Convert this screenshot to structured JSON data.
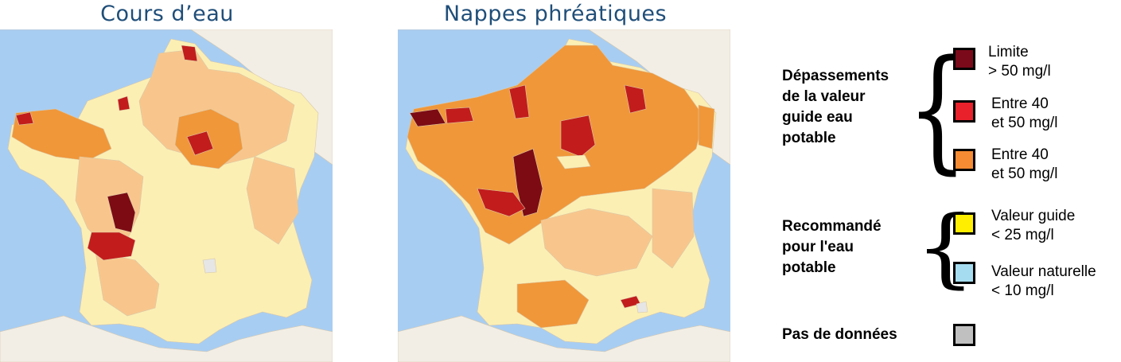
{
  "maps": [
    {
      "title": "Cours d’eau"
    },
    {
      "title": "Nappes phréatiques"
    }
  ],
  "colors": {
    "sea": "#a8cdf2",
    "land_outside": "#f2eee6",
    "class_lt25": "#fcefb4",
    "class_25_40": "#f8c68c",
    "class_40_50": "#f0973a",
    "class_gt50": "#c21c1c",
    "class_limit": "#7c0b14",
    "no_data": "#e6e6e6",
    "swatch_limit": "#7a0a1a",
    "swatch_40_50": "#e8212b",
    "swatch_orange": "#f58b33",
    "swatch_yellow": "#ffee00",
    "swatch_blue": "#a6dcef",
    "swatch_grey": "#c0c0c0"
  },
  "legend": {
    "group1_heading": [
      "Dépassements",
      "de la valeur",
      "guide eau",
      "potable"
    ],
    "group2_heading": [
      "Recommandé",
      "pour l'eau",
      "potable"
    ],
    "no_data_heading": "Pas de données",
    "items": [
      {
        "line1": "Limite",
        "line2": "> 50 mg/l"
      },
      {
        "line1": "Entre 40",
        "line2": "et 50 mg/l"
      },
      {
        "line1": "Entre 40",
        "line2": "et 50 mg/l"
      },
      {
        "line1": "Valeur guide",
        "line2": "< 25 mg/l"
      },
      {
        "line1": "Valeur naturelle",
        "line2": "< 10 mg/l"
      }
    ]
  }
}
